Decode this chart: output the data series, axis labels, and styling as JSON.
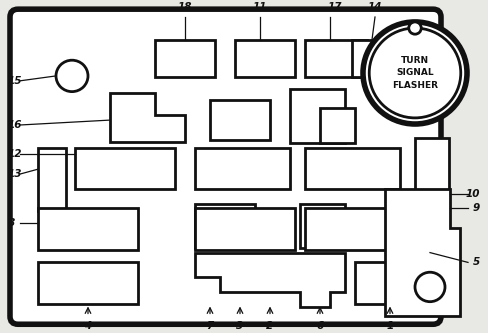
{
  "bg_color": "#e8e8e4",
  "line_color": "#111111",
  "lw": 2.0,
  "fig_w": 4.89,
  "fig_h": 3.33,
  "flasher_text": [
    "TURN",
    "SIGNAL",
    "FLASHER"
  ]
}
